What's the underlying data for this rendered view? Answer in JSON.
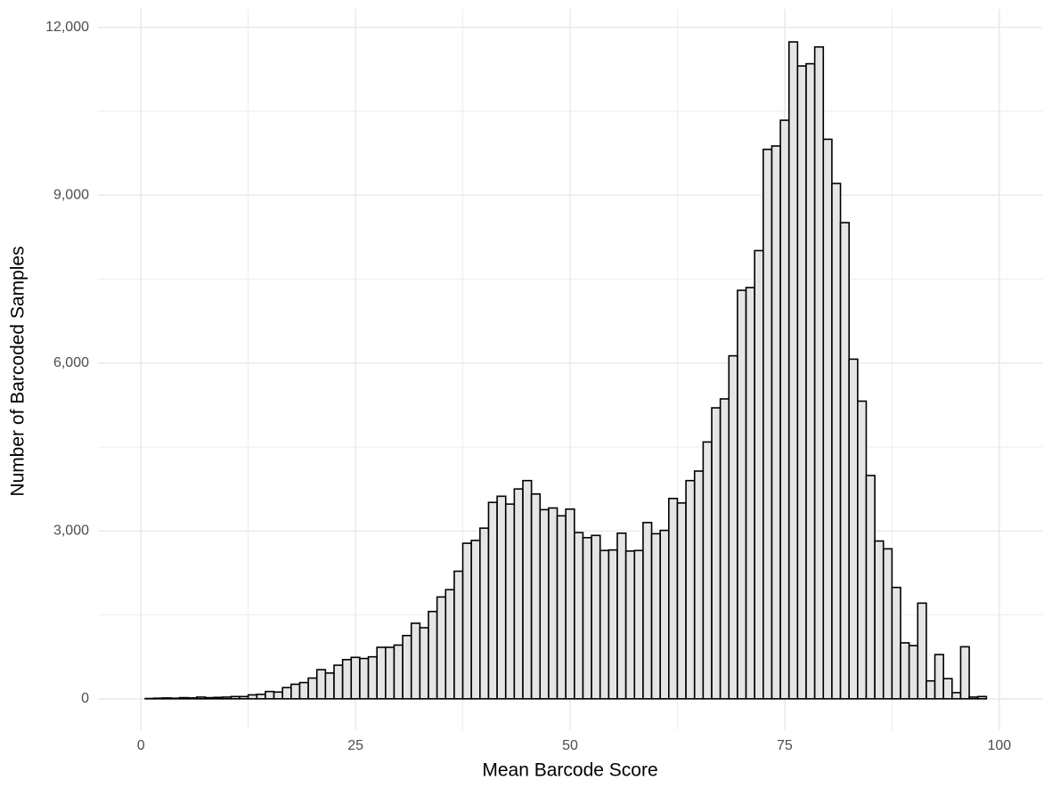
{
  "chart_data": {
    "type": "histogram",
    "x_label": "Mean Barcode Score",
    "y_label": "Number of Barcoded Samples",
    "bins": [
      0.5,
      1.5,
      2.5,
      3.5,
      4.5,
      5.5,
      6.5,
      7.5,
      8.5,
      9.5,
      10.5,
      11.5,
      12.5,
      13.5,
      14.5,
      15.5,
      16.5,
      17.5,
      18.5,
      19.5,
      20.5,
      21.5,
      22.5,
      23.5,
      24.5,
      25.5,
      26.5,
      27.5,
      28.5,
      29.5,
      30.5,
      31.5,
      32.5,
      33.5,
      34.5,
      35.5,
      36.5,
      37.5,
      38.5,
      39.5,
      40.5,
      41.5,
      42.5,
      43.5,
      44.5,
      45.5,
      46.5,
      47.5,
      48.5,
      49.5,
      50.5,
      51.5,
      52.5,
      53.5,
      54.5,
      55.5,
      56.5,
      57.5,
      58.5,
      59.5,
      60.5,
      61.5,
      62.5,
      63.5,
      64.5,
      65.5,
      66.5,
      67.5,
      68.5,
      69.5,
      70.5,
      71.5,
      72.5,
      73.5,
      74.5,
      75.5,
      76.5,
      77.5,
      78.5,
      79.5,
      80.5,
      81.5,
      82.5,
      83.5,
      84.5,
      85.5,
      86.5,
      87.5,
      88.5,
      89.5,
      90.5,
      91.5,
      92.5,
      93.5,
      94.5,
      95.5,
      96.5,
      97.5,
      98.5,
      99.5
    ],
    "values": [
      5,
      10,
      15,
      10,
      20,
      15,
      30,
      20,
      25,
      30,
      40,
      40,
      70,
      80,
      130,
      120,
      200,
      260,
      290,
      370,
      520,
      460,
      600,
      700,
      740,
      720,
      750,
      920,
      920,
      960,
      1130,
      1350,
      1270,
      1560,
      1820,
      1950,
      2280,
      2780,
      2830,
      3050,
      3510,
      3620,
      3480,
      3750,
      3900,
      3660,
      3380,
      3410,
      3270,
      3390,
      2970,
      2880,
      2920,
      2650,
      2660,
      2960,
      2640,
      2650,
      3150,
      2950,
      3010,
      3580,
      3500,
      3900,
      4070,
      4590,
      5200,
      5360,
      6130,
      7300,
      7350,
      8010,
      9820,
      9880,
      10340,
      11740,
      11310,
      11350,
      11650,
      10000,
      9210,
      8510,
      6070,
      5320,
      3990,
      2820,
      2680,
      1990,
      1000,
      950,
      1710,
      320,
      790,
      360,
      110,
      930,
      30,
      40,
      0
    ],
    "fill": "#e5e5e5",
    "edgecolor": "#000000",
    "xlim": [
      -5,
      105
    ],
    "xticks": [
      0,
      25,
      50,
      75,
      100
    ],
    "ylim": [
      -560,
      12330
    ],
    "yticks": [
      0,
      {
        "value": 3000,
        "label": "3,000"
      },
      {
        "value": 6000,
        "label": "6,000"
      },
      {
        "value": 9000,
        "label": "9,000"
      },
      {
        "value": 12000,
        "label": "12,000"
      }
    ],
    "grid": true,
    "minor_grid": true
  }
}
